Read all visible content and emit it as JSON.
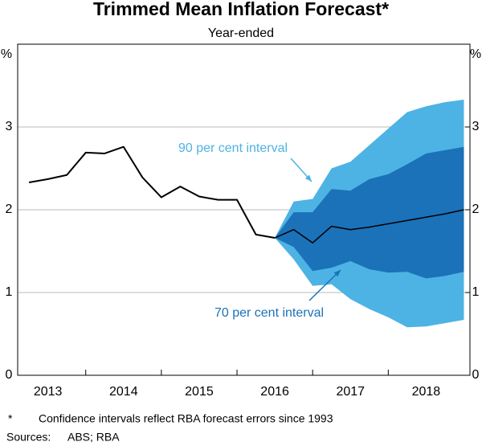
{
  "chart_data": {
    "type": "line",
    "title": "Trimmed Mean Inflation Forecast*",
    "subtitle": "Year-ended",
    "ylabel": "%",
    "y2label": "%",
    "x": [
      2013.25,
      2013.5,
      2013.75,
      2014,
      2014.25,
      2014.5,
      2014.75,
      2015,
      2015.25,
      2015.5,
      2015.75,
      2016,
      2016.25,
      2016.5,
      2016.75,
      2017,
      2017.25,
      2017.5,
      2017.75,
      2018,
      2018.25,
      2018.5,
      2018.75,
      2019
    ],
    "xlim": [
      2013.1,
      2019.08
    ],
    "xticks": [
      {
        "value": 2013.5,
        "label": "2013"
      },
      {
        "value": 2014.5,
        "label": "2014"
      },
      {
        "value": 2015.5,
        "label": "2015"
      },
      {
        "value": 2016.5,
        "label": "2016"
      },
      {
        "value": 2017.5,
        "label": "2017"
      },
      {
        "value": 2018.5,
        "label": "2018"
      }
    ],
    "xminorticks": [
      2014,
      2015,
      2016,
      2017,
      2018
    ],
    "ylim": [
      0,
      4
    ],
    "yticks": [
      0,
      1,
      2,
      3
    ],
    "y2lim": [
      0,
      4
    ],
    "y2ticks": [
      0,
      1,
      2,
      3
    ],
    "grid": true,
    "series": [
      {
        "color": "#000000",
        "values": [
          2.33,
          2.37,
          2.42,
          2.69,
          2.68,
          2.76,
          2.39,
          2.15,
          2.28,
          2.16,
          2.12,
          2.12,
          1.7,
          1.66,
          null,
          null,
          null,
          null,
          null,
          null,
          null,
          null,
          null,
          null
        ]
      },
      {
        "color": "#000000",
        "values": [
          null,
          null,
          null,
          null,
          null,
          null,
          null,
          null,
          null,
          null,
          null,
          null,
          null,
          1.66,
          1.76,
          1.6,
          1.8,
          1.76,
          1.79,
          1.83,
          1.87,
          1.91,
          1.95,
          2.0
        ]
      }
    ],
    "bands": [
      {
        "color": "#4db3e4",
        "upper": [
          null,
          null,
          null,
          null,
          null,
          null,
          null,
          null,
          null,
          null,
          null,
          null,
          null,
          1.66,
          2.1,
          2.13,
          2.5,
          2.58,
          2.78,
          2.98,
          3.18,
          3.25,
          3.3,
          3.33
        ],
        "lower": [
          null,
          null,
          null,
          null,
          null,
          null,
          null,
          null,
          null,
          null,
          null,
          null,
          null,
          1.66,
          1.4,
          1.08,
          1.1,
          0.92,
          0.8,
          0.7,
          0.58,
          0.59,
          0.63,
          0.67
        ]
      },
      {
        "color": "#1b72b9",
        "upper": [
          null,
          null,
          null,
          null,
          null,
          null,
          null,
          null,
          null,
          null,
          null,
          null,
          null,
          1.66,
          1.97,
          1.97,
          2.25,
          2.23,
          2.37,
          2.43,
          2.55,
          2.68,
          2.72,
          2.76
        ],
        "lower": [
          null,
          null,
          null,
          null,
          null,
          null,
          null,
          null,
          null,
          null,
          null,
          null,
          null,
          1.66,
          1.55,
          1.26,
          1.3,
          1.38,
          1.28,
          1.24,
          1.25,
          1.17,
          1.2,
          1.25
        ]
      }
    ],
    "annotations": [
      {
        "text": "90 per cent interval",
        "color": "#4db3e4"
      },
      {
        "text": "70 per cent interval",
        "color": "#1b72b9"
      }
    ],
    "footnote": {
      "marker": "*",
      "text": "Confidence intervals reflect RBA forecast errors since 1993"
    },
    "sources": {
      "label": "Sources:",
      "text": "ABS; RBA"
    }
  }
}
